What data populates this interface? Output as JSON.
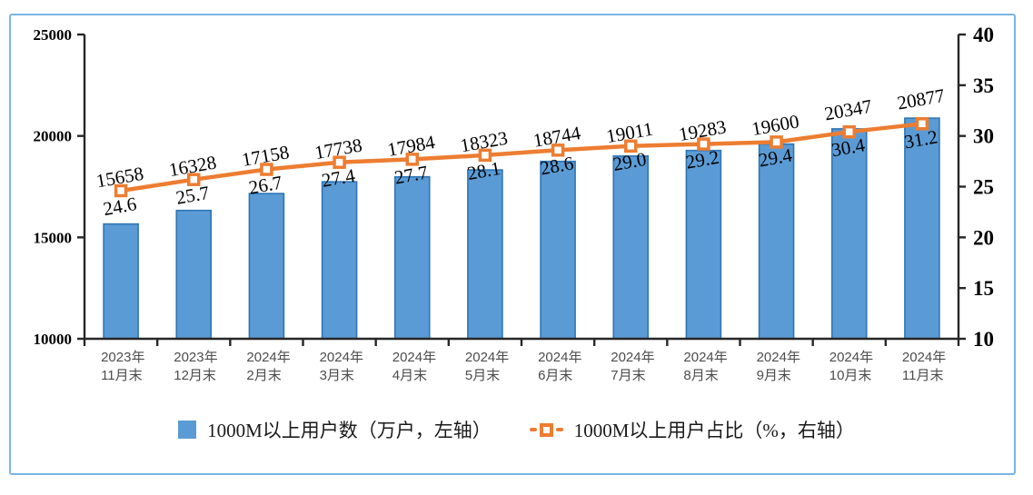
{
  "figure": {
    "border_color": "#7cb4e2",
    "background": "#ffffff",
    "axis_color": "#262626",
    "category_label_color": "#4d4d4d",
    "data_label_color": "#000000"
  },
  "chart_data": {
    "type": "combo-bar-line",
    "title": "",
    "grid": false,
    "legend_position": "bottom",
    "categories": [
      [
        "2023年",
        "11月末"
      ],
      [
        "2023年",
        "12月末"
      ],
      [
        "2024年",
        "2月末"
      ],
      [
        "2024年",
        "3月末"
      ],
      [
        "2024年",
        "4月末"
      ],
      [
        "2024年",
        "5月末"
      ],
      [
        "2024年",
        "6月末"
      ],
      [
        "2024年",
        "7月末"
      ],
      [
        "2024年",
        "8月末"
      ],
      [
        "2024年",
        "9月末"
      ],
      [
        "2024年",
        "10月末"
      ],
      [
        "2024年",
        "11月末"
      ]
    ],
    "series": [
      {
        "name": "1000M以上用户数（万户，左轴）",
        "type": "bar",
        "axis": "left",
        "color": "#5b9bd5",
        "border_color": "#2e75b6",
        "values": [
          15658,
          16328,
          17158,
          17738,
          17984,
          18323,
          18744,
          19011,
          19283,
          19600,
          20347,
          20877
        ],
        "value_labels": [
          "15658",
          "16328",
          "17158",
          "17738",
          "17984",
          "18323",
          "18744",
          "19011",
          "19283",
          "19600",
          "20347",
          "20877"
        ]
      },
      {
        "name": "1000M以上用户占比（%，右轴）",
        "type": "line",
        "axis": "right",
        "color": "#ed7d31",
        "marker": "square-open",
        "values": [
          24.6,
          25.7,
          26.7,
          27.4,
          27.7,
          28.1,
          28.6,
          29.0,
          29.2,
          29.4,
          30.4,
          31.2
        ],
        "value_labels": [
          "24.6",
          "25.7",
          "26.7",
          "27.4",
          "27.7",
          "28.1",
          "28.6",
          "29.0",
          "29.2",
          "29.4",
          "30.4",
          "31.2"
        ]
      }
    ],
    "left_axis": {
      "min": 10000,
      "max": 25000,
      "tick_labels": [
        "25000",
        "20000",
        "15000",
        "10000"
      ],
      "tick_values": [
        25000,
        20000,
        15000,
        10000
      ]
    },
    "right_axis": {
      "min": 10,
      "max": 40,
      "tick_labels": [
        "40",
        "35",
        "30",
        "25",
        "20",
        "15",
        "10"
      ],
      "tick_values": [
        40,
        35,
        30,
        25,
        20,
        15,
        10
      ]
    }
  }
}
